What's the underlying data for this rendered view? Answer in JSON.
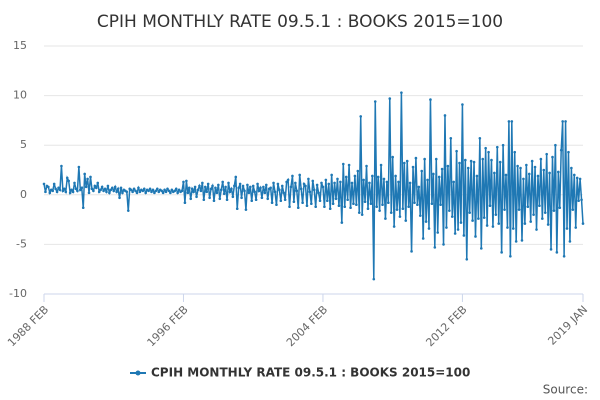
{
  "chart_data": {
    "type": "line",
    "title": "CPIH MONTHLY RATE 09.5.1 : BOOKS 2015=100",
    "source": "Source:",
    "ylim": [
      -10,
      15
    ],
    "yticks": [
      15,
      10,
      5,
      0,
      -5,
      -10
    ],
    "grid": true,
    "categories": [
      "1988 FEB",
      null,
      null,
      null,
      null,
      null,
      null,
      null,
      null,
      null,
      null,
      null,
      null,
      null,
      null,
      null,
      null,
      null,
      null,
      null,
      null,
      null,
      null,
      null,
      null,
      null,
      null,
      null,
      null,
      null,
      null,
      null,
      null,
      null,
      null,
      null,
      null,
      null,
      null,
      null,
      null,
      null,
      null,
      null,
      null,
      null,
      null,
      null,
      null,
      null,
      null,
      null,
      null,
      null,
      null,
      null,
      null,
      null,
      null,
      null,
      null,
      null,
      null,
      null,
      null,
      null,
      null,
      null,
      null,
      null,
      null,
      null,
      null,
      null,
      null,
      null,
      null,
      null,
      null,
      null,
      null,
      null,
      null,
      null,
      null,
      null,
      null,
      null,
      null,
      null,
      null,
      null,
      null,
      null,
      null,
      null,
      "1996 FEB",
      null,
      null,
      null,
      null,
      null,
      null,
      null,
      null,
      null,
      null,
      null,
      null,
      null,
      null,
      null,
      null,
      null,
      null,
      null,
      null,
      null,
      null,
      null,
      null,
      null,
      null,
      null,
      null,
      null,
      null,
      null,
      null,
      null,
      null,
      null,
      null,
      null,
      null,
      null,
      null,
      null,
      null,
      null,
      null,
      null,
      null,
      null,
      null,
      null,
      null,
      null,
      null,
      null,
      null,
      null,
      null,
      null,
      null,
      null,
      null,
      null,
      null,
      null,
      null,
      null,
      null,
      null,
      null,
      null,
      null,
      null,
      null,
      null,
      null,
      null,
      null,
      null,
      null,
      null,
      null,
      null,
      null,
      null,
      null,
      null,
      null,
      null,
      null,
      null,
      null,
      null,
      null,
      null,
      null,
      null,
      "2004 FEB",
      null,
      null,
      null,
      null,
      null,
      null,
      null,
      null,
      null,
      null,
      null,
      null,
      null,
      null,
      null,
      null,
      null,
      null,
      null,
      null,
      null,
      null,
      null,
      null,
      null,
      null,
      null,
      null,
      null,
      null,
      null,
      null,
      null,
      null,
      null,
      null,
      null,
      null,
      null,
      null,
      null,
      null,
      null,
      null,
      null,
      null,
      null,
      null,
      null,
      null,
      null,
      null,
      null,
      null,
      null,
      null,
      null,
      null,
      null,
      null,
      null,
      null,
      null,
      null,
      null,
      null,
      null,
      null,
      null,
      null,
      null,
      null,
      null,
      null,
      null,
      null,
      null,
      null,
      null,
      null,
      null,
      null,
      null,
      null,
      null,
      null,
      null,
      null,
      null,
      null,
      null,
      null,
      null,
      null,
      null,
      "2012 FEB",
      null,
      null,
      null,
      null,
      null,
      null,
      null,
      null,
      null,
      null,
      null,
      null,
      null,
      null,
      null,
      null,
      null,
      null,
      null,
      null,
      null,
      null,
      null,
      null,
      null,
      null,
      null,
      null,
      null,
      null,
      null,
      null,
      null,
      null,
      null,
      null,
      null,
      null,
      null,
      null,
      null,
      null,
      null,
      null,
      null,
      null,
      null,
      null,
      null,
      null,
      null,
      null,
      null,
      null,
      null,
      null,
      null,
      null,
      null,
      null,
      null,
      null,
      null,
      null,
      null,
      null,
      null,
      null,
      null,
      null,
      null,
      null,
      null,
      null,
      null,
      null,
      null,
      null,
      null,
      null,
      null,
      null,
      "2019 JAN"
    ],
    "series": [
      {
        "name": "CPIH MONTHLY RATE 09.5.1 : BOOKS 2015=100",
        "color": "#1f78b4",
        "values": [
          1.1,
          0.3,
          0.9,
          0.8,
          0.2,
          0.5,
          0.4,
          1.1,
          0.6,
          0.3,
          0.7,
          0.5,
          2.9,
          0.4,
          0.6,
          0.3,
          1.7,
          1.4,
          0.2,
          0.5,
          0.3,
          1.2,
          0.6,
          0.4,
          2.8,
          0.5,
          0.7,
          -1.3,
          2.1,
          0.8,
          1.6,
          0.2,
          1.8,
          0.6,
          0.4,
          0.9,
          0.7,
          1.2,
          0.3,
          0.5,
          0.8,
          0.4,
          0.6,
          0.3,
          0.9,
          0.2,
          0.5,
          0.7,
          0.4,
          0.8,
          0.3,
          0.6,
          -0.3,
          0.7,
          0.2,
          0.5,
          0.4,
          0.3,
          -1.6,
          0.6,
          0.5,
          0.3,
          0.6,
          0.4,
          0.2,
          0.7,
          0.3,
          0.5,
          0.4,
          0.6,
          0.2,
          0.5,
          0.4,
          0.6,
          0.3,
          0.5,
          0.2,
          0.4,
          0.6,
          0.3,
          0.5,
          0.4,
          0.2,
          0.5,
          0.3,
          0.6,
          0.4,
          0.2,
          0.5,
          0.3,
          0.4,
          0.6,
          0.2,
          0.5,
          0.3,
          0.4,
          1.3,
          -0.8,
          1.4,
          0.2,
          0.7,
          -0.4,
          0.6,
          0.3,
          0.8,
          -0.2,
          0.5,
          0.9,
          0.4,
          1.2,
          -0.5,
          0.8,
          0.3,
          1.1,
          -0.3,
          0.6,
          0.9,
          -0.6,
          0.7,
          0.2,
          1.0,
          -0.4,
          0.5,
          1.3,
          0.1,
          0.8,
          -0.5,
          1.2,
          0.3,
          0.6,
          -0.2,
          0.9,
          1.8,
          -1.4,
          0.7,
          1.1,
          -0.3,
          0.9,
          0.4,
          -1.5,
          1.0,
          0.2,
          0.8,
          -0.6,
          0.9,
          0.3,
          -0.5,
          1.1,
          0.4,
          0.7,
          -0.3,
          0.8,
          0.2,
          1.0,
          -0.4,
          0.6,
          0.7,
          -0.8,
          1.2,
          0.3,
          -1.0,
          1.1,
          0.5,
          -0.6,
          0.9,
          0.2,
          -0.5,
          1.3,
          1.5,
          -1.2,
          0.8,
          1.9,
          -0.7,
          1.2,
          0.4,
          -1.3,
          2.0,
          0.6,
          -0.8,
          1.1,
          0.9,
          -1.1,
          1.6,
          0.3,
          -0.9,
          1.4,
          0.5,
          -1.2,
          1.0,
          0.2,
          -0.6,
          1.2,
          0.8,
          -1.2,
          1.5,
          -0.6,
          1.1,
          -1.4,
          2.0,
          -0.9,
          1.2,
          -0.4,
          1.6,
          -1.1,
          1.3,
          -2.8,
          3.1,
          -1.2,
          1.8,
          -0.5,
          3.0,
          -1.3,
          1.2,
          -0.9,
          1.9,
          -1.0,
          2.4,
          -1.8,
          7.9,
          -2.0,
          1.5,
          -0.7,
          2.9,
          -1.4,
          1.2,
          -0.9,
          1.9,
          -8.5,
          9.4,
          -1.2,
          1.8,
          -1.6,
          3.0,
          -1.0,
          1.6,
          -2.4,
          1.3,
          -0.8,
          9.7,
          -1.8,
          3.8,
          -3.2,
          1.9,
          -1.5,
          1.3,
          -2.2,
          10.3,
          -1.4,
          3.2,
          -2.6,
          3.4,
          -1.2,
          1.2,
          -5.7,
          2.8,
          -0.8,
          3.7,
          -1.0,
          0.8,
          -2.1,
          2.4,
          -4.4,
          3.6,
          -2.7,
          1.5,
          -3.4,
          9.6,
          -0.9,
          2.1,
          -5.3,
          3.6,
          -3.8,
          1.8,
          -1.0,
          2.6,
          -5.0,
          8.0,
          -3.3,
          2.9,
          -1.6,
          5.7,
          -2.2,
          1.3,
          -3.9,
          4.4,
          -3.5,
          3.2,
          -2.8,
          9.1,
          -4.1,
          3.5,
          -6.5,
          2.7,
          -1.8,
          3.4,
          -2.6,
          3.3,
          -4.2,
          1.9,
          -2.4,
          5.7,
          -5.4,
          3.6,
          -2.3,
          4.7,
          -3.1,
          4.3,
          -1.1,
          3.5,
          -3.2,
          2.2,
          -2.0,
          4.8,
          -2.9,
          3.3,
          -5.8,
          5.0,
          -1.5,
          2.0,
          -3.3,
          7.4,
          -6.2,
          7.4,
          -3.4,
          4.3,
          -4.7,
          2.9,
          -1.5,
          2.7,
          -4.6,
          1.6,
          -2.9,
          3.0,
          -1.2,
          2.1,
          -2.7,
          3.4,
          -2.0,
          2.8,
          -3.5,
          1.9,
          -1.1,
          3.6,
          -2.4,
          2.5,
          -1.8,
          4.1,
          -3.0,
          2.2,
          -5.5,
          3.8,
          -1.6,
          5.0,
          -5.8,
          2.3,
          -1.3,
          4.5,
          7.4,
          -6.2,
          7.4,
          -3.4,
          4.3,
          -4.7,
          2.7,
          -1.5,
          2.0,
          -3.3,
          1.7,
          -0.6,
          1.6,
          -0.5,
          -2.9
        ]
      }
    ]
  }
}
